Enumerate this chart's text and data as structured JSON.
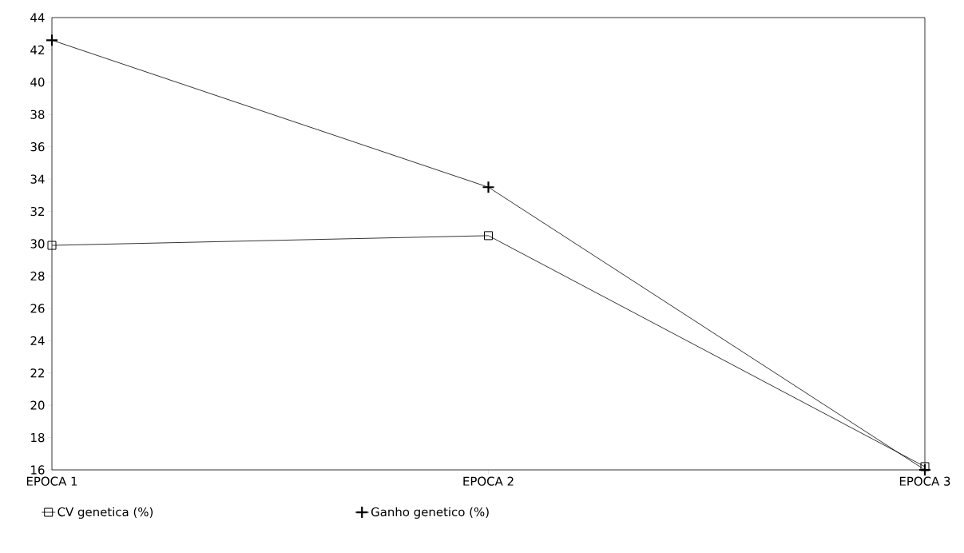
{
  "chart_data": {
    "type": "line",
    "categories": [
      "EPOCA 1",
      "EPOCA 2",
      "EPOCA 3"
    ],
    "series": [
      {
        "name": "CV genetica (%)",
        "color": "#000000",
        "marker": "square",
        "values": [
          29.9,
          30.5,
          16.2
        ]
      },
      {
        "name": "Ganho genetico (%)",
        "color": "#000000",
        "marker": "cross",
        "values": [
          42.6,
          33.5,
          16.0
        ]
      }
    ],
    "ylim": [
      16,
      44
    ],
    "yticks": [
      16,
      18,
      20,
      22,
      24,
      26,
      28,
      30,
      32,
      34,
      36,
      38,
      40,
      42,
      44
    ],
    "grid": false,
    "legend": "bottom",
    "line_style": "solid"
  }
}
